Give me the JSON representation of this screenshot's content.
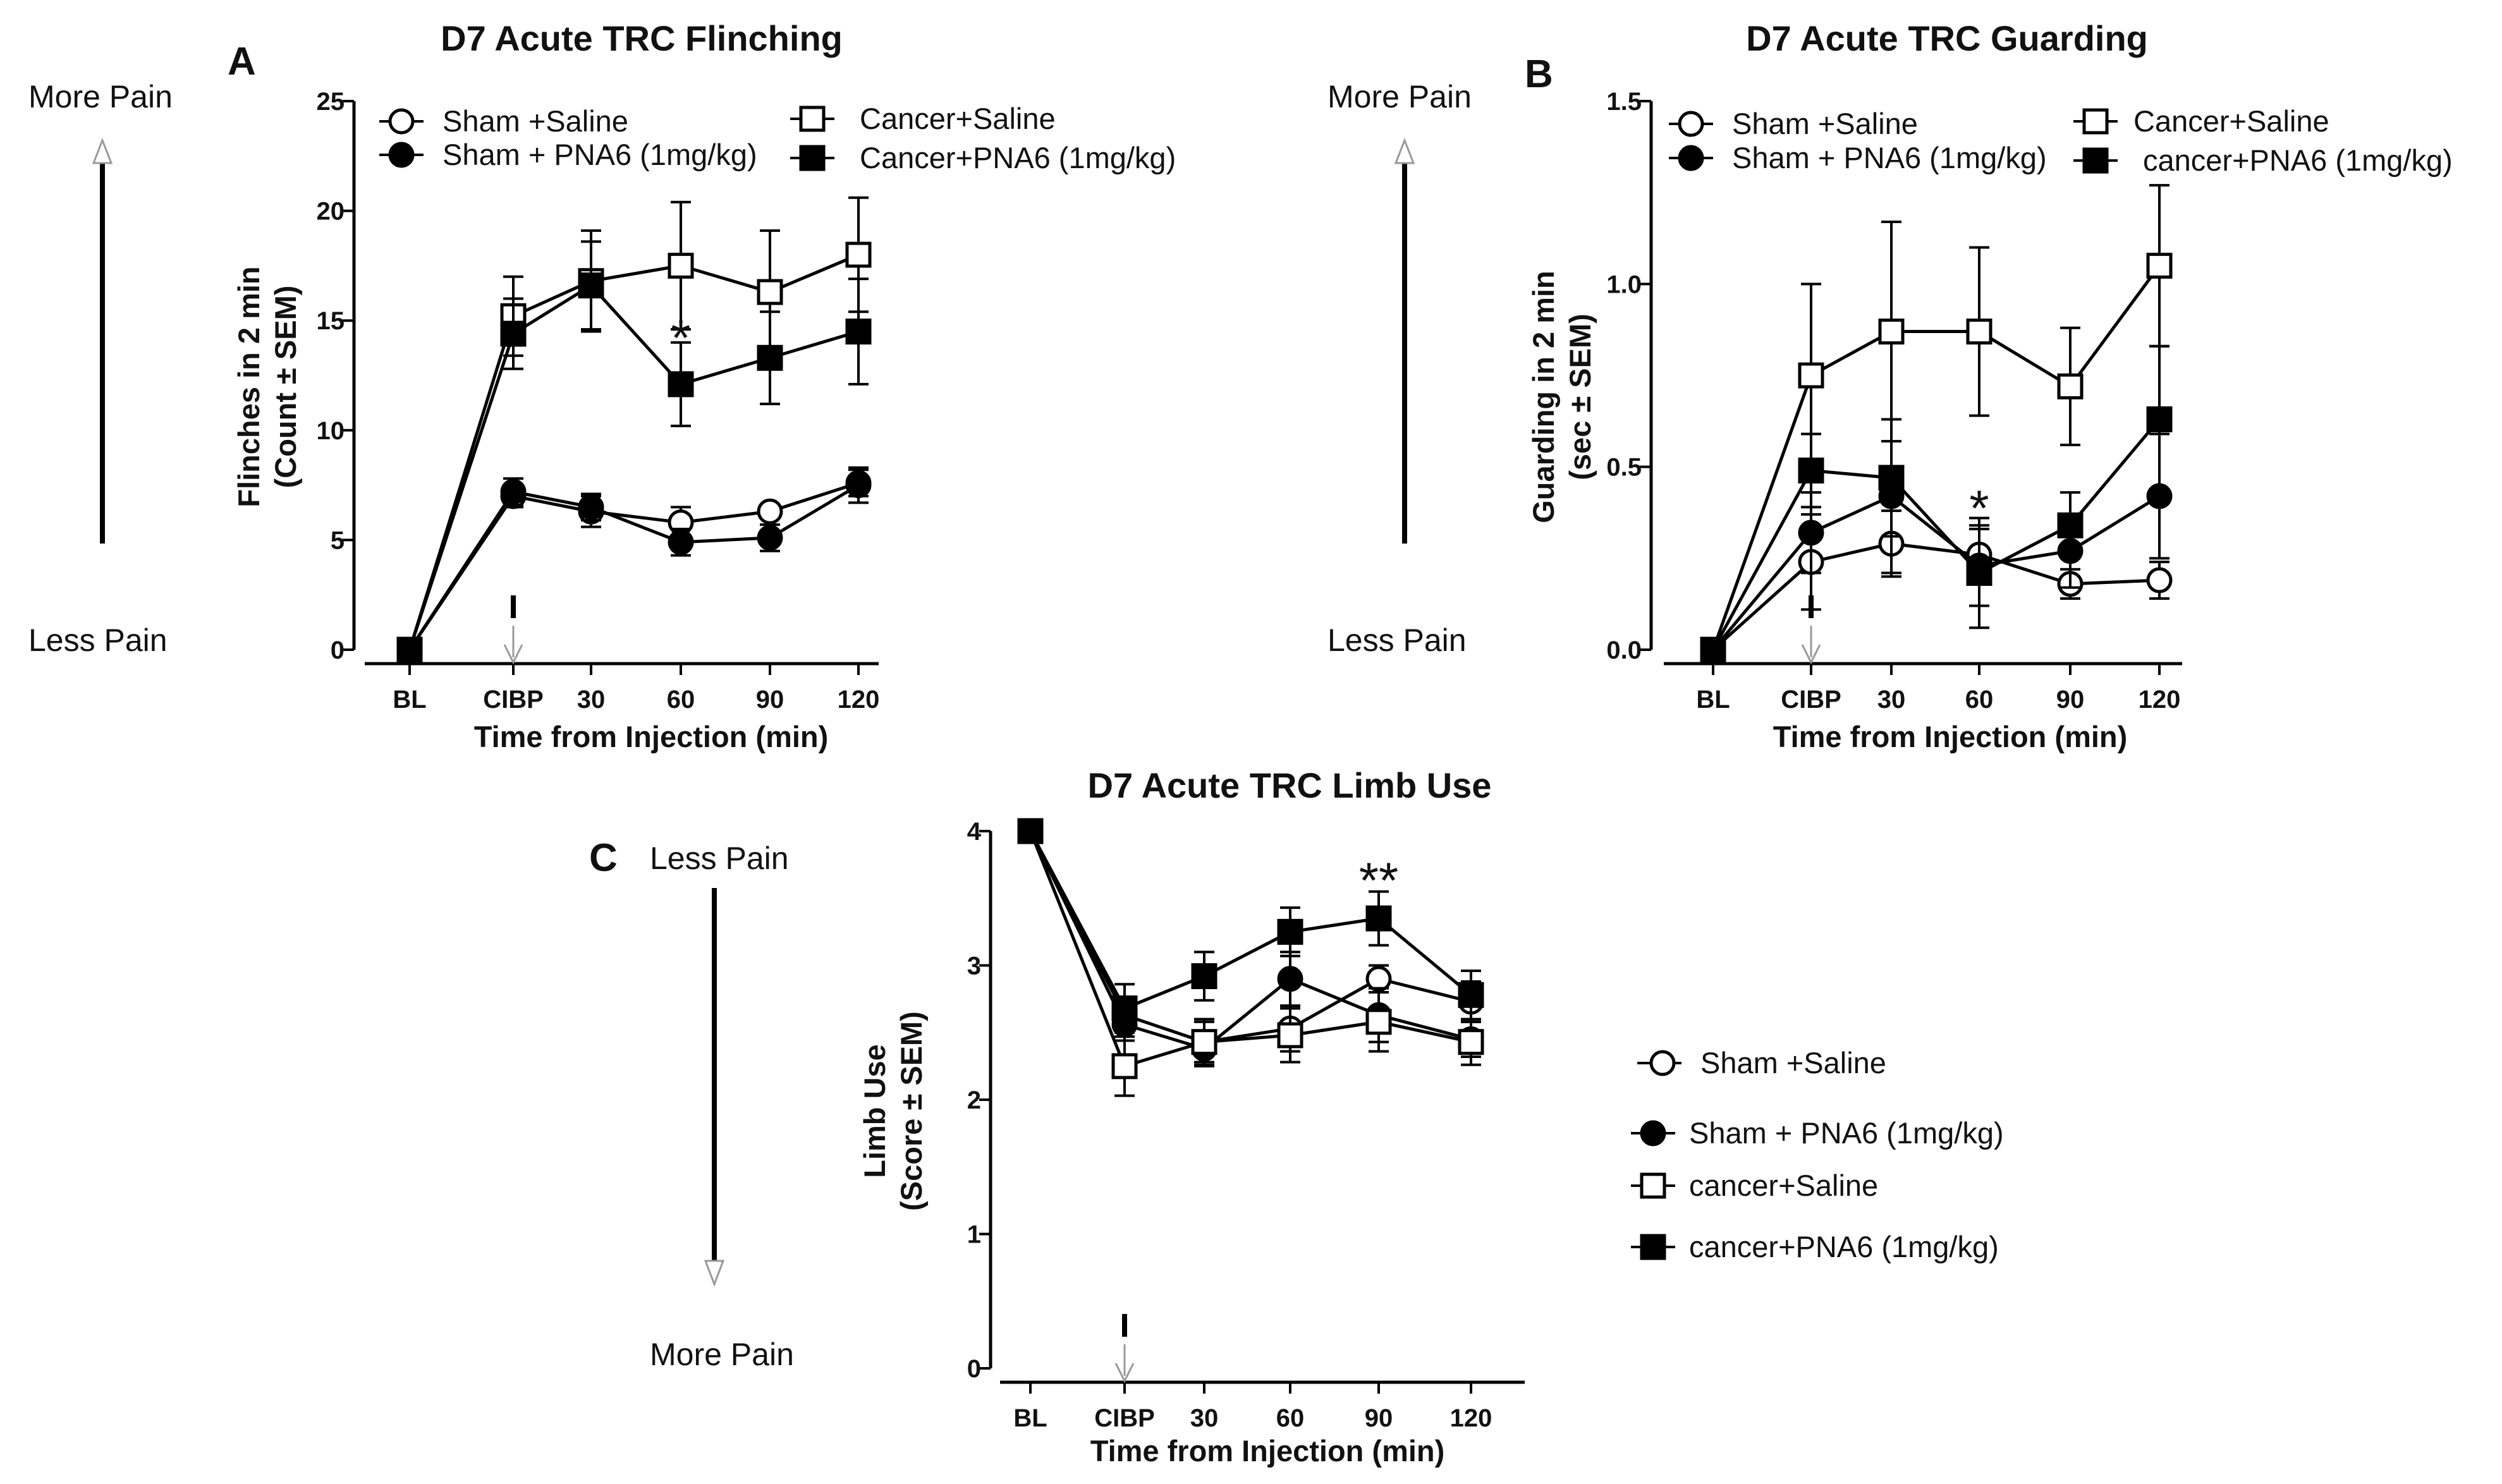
{
  "charts": [
    {
      "key": "A",
      "panel_label": "A",
      "title": "D7 Acute TRC Flinching",
      "ylabel_line1": "Flinches in 2 min",
      "ylabel_line2": "(Count ± SEM)",
      "xlabel": "Time from Injection (min)",
      "pain_top": "More Pain",
      "pain_bottom": "Less Pain",
      "stars": "*",
      "legend": [
        "Sham +Saline",
        "Sham + PNA6 (1mg/kg)",
        "Cancer+Saline",
        "Cancer+PNA6 (1mg/kg)"
      ]
    },
    {
      "key": "B",
      "panel_label": "B",
      "title": "D7 Acute TRC Guarding",
      "ylabel_line1": "Guarding in 2 min",
      "ylabel_line2": "(sec ± SEM)",
      "xlabel": "Time from Injection (min)",
      "pain_top": "More Pain",
      "pain_bottom": "Less Pain",
      "stars": "*",
      "legend": [
        "Sham +Saline",
        "Sham + PNA6 (1mg/kg)",
        "Cancer+Saline",
        "cancer+PNA6 (1mg/kg)"
      ]
    },
    {
      "key": "C",
      "panel_label": "C",
      "title": "D7 Acute TRC Limb Use",
      "ylabel_line1": "Limb Use",
      "ylabel_line2": "(Score ± SEM)",
      "xlabel": "Time from Injection (min)",
      "pain_top": "Less Pain",
      "pain_bottom": "More Pain",
      "stars": "**",
      "legend": [
        "Sham +Saline",
        "Sham + PNA6 (1mg/kg)",
        "cancer+Saline",
        "cancer+PNA6 (1mg/kg)"
      ]
    }
  ],
  "chart_data": [
    {
      "type": "line",
      "panel": "A",
      "title": "D7 Acute TRC Flinching",
      "xlabel": "Time from Injection (min)",
      "ylabel": "Flinches in 2 min (Count ± SEM)",
      "categories": [
        "BL",
        "CIBP",
        "30",
        "60",
        "90",
        "120"
      ],
      "ylim": [
        0,
        25
      ],
      "yticks": [
        "0",
        "5",
        "10",
        "15",
        "20",
        "25"
      ],
      "injection_marker_category": "CIBP",
      "significance": {
        "category": "60",
        "label": "*"
      },
      "series": [
        {
          "name": "Sham +Saline",
          "marker": "circle-open",
          "values": [
            0,
            7.0,
            6.3,
            5.8,
            6.3,
            7.6
          ],
          "sem": [
            0,
            0.5,
            0.7,
            0.7,
            0,
            0.6
          ]
        },
        {
          "name": "Sham + PNA6 (1mg/kg)",
          "marker": "circle-filled",
          "values": [
            0,
            7.2,
            6.5,
            4.9,
            5.1,
            7.5
          ],
          "sem": [
            0,
            0.6,
            0.6,
            0.6,
            0.6,
            0.8
          ]
        },
        {
          "name": "Cancer+Saline",
          "marker": "square-open",
          "values": [
            0,
            15.2,
            16.8,
            17.5,
            16.3,
            18.0
          ],
          "sem": [
            0,
            1.8,
            2.3,
            2.9,
            2.8,
            2.6
          ]
        },
        {
          "name": "Cancer+PNA6 (1mg/kg)",
          "marker": "square-filled",
          "values": [
            0,
            14.4,
            16.6,
            12.1,
            13.3,
            14.5
          ],
          "sem": [
            0,
            1.6,
            2.0,
            1.9,
            2.1,
            2.4
          ]
        }
      ]
    },
    {
      "type": "line",
      "panel": "B",
      "title": "D7 Acute TRC Guarding",
      "xlabel": "Time from Injection (min)",
      "ylabel": "Guarding in 2 min (sec ± SEM)",
      "categories": [
        "BL",
        "CIBP",
        "30",
        "60",
        "90",
        "120"
      ],
      "ylim": [
        0,
        1.5
      ],
      "yticks": [
        "0.0",
        "0.5",
        "1.0",
        "1.5"
      ],
      "injection_marker_category": "CIBP",
      "significance": {
        "category": "60",
        "label": "*"
      },
      "series": [
        {
          "name": "Sham +Saline",
          "marker": "circle-open",
          "values": [
            0,
            0.24,
            0.29,
            0.26,
            0.18,
            0.19
          ],
          "sem": [
            0,
            0.13,
            0.09,
            0.07,
            0.04,
            0.05
          ]
        },
        {
          "name": "Sham + PNA6 (1mg/kg)",
          "marker": "circle-filled",
          "values": [
            0,
            0.32,
            0.42,
            0.23,
            0.27,
            0.42
          ],
          "sem": [
            0,
            0.11,
            0.21,
            0.11,
            0.1,
            0.17
          ]
        },
        {
          "name": "Cancer+Saline",
          "marker": "square-open",
          "values": [
            0,
            0.75,
            0.87,
            0.87,
            0.72,
            1.05
          ],
          "sem": [
            0,
            0.25,
            0.3,
            0.23,
            0.16,
            0.22
          ]
        },
        {
          "name": "cancer+PNA6 (1mg/kg)",
          "marker": "square-filled",
          "values": [
            0,
            0.49,
            0.47,
            0.21,
            0.34,
            0.63
          ],
          "sem": [
            0,
            0.1,
            0.16,
            0.15,
            0.09,
            0.2
          ]
        }
      ]
    },
    {
      "type": "line",
      "panel": "C",
      "title": "D7 Acute TRC Limb Use",
      "xlabel": "Time from Injection (min)",
      "ylabel": "Limb Use (Score ± SEM)",
      "categories": [
        "BL",
        "CIBP",
        "30",
        "60",
        "90",
        "120"
      ],
      "ylim": [
        0,
        4
      ],
      "yticks": [
        "0",
        "1",
        "2",
        "3",
        "4"
      ],
      "injection_marker_category": "CIBP",
      "significance": {
        "category": "90",
        "label": "**"
      },
      "series": [
        {
          "name": "Sham +Saline",
          "marker": "circle-open",
          "values": [
            4,
            2.63,
            2.43,
            2.53,
            2.9,
            2.73
          ],
          "sem": [
            0,
            0.12,
            0.15,
            0.17,
            0.1,
            0.15
          ]
        },
        {
          "name": "Sham + PNA6 (1mg/kg)",
          "marker": "circle-filled",
          "values": [
            4,
            2.56,
            2.38,
            2.9,
            2.63,
            2.45
          ],
          "sem": [
            0,
            0.12,
            0.13,
            0.2,
            0.2,
            0.13
          ]
        },
        {
          "name": "cancer+Saline",
          "marker": "square-open",
          "values": [
            4,
            2.25,
            2.43,
            2.48,
            2.58,
            2.43
          ],
          "sem": [
            0,
            0.22,
            0.17,
            0.2,
            0.22,
            0.17
          ]
        },
        {
          "name": "cancer+PNA6 (1mg/kg)",
          "marker": "square-filled",
          "values": [
            4,
            2.68,
            2.92,
            3.25,
            3.35,
            2.78
          ],
          "sem": [
            0,
            0.18,
            0.18,
            0.18,
            0.2,
            0.18
          ]
        }
      ]
    }
  ]
}
